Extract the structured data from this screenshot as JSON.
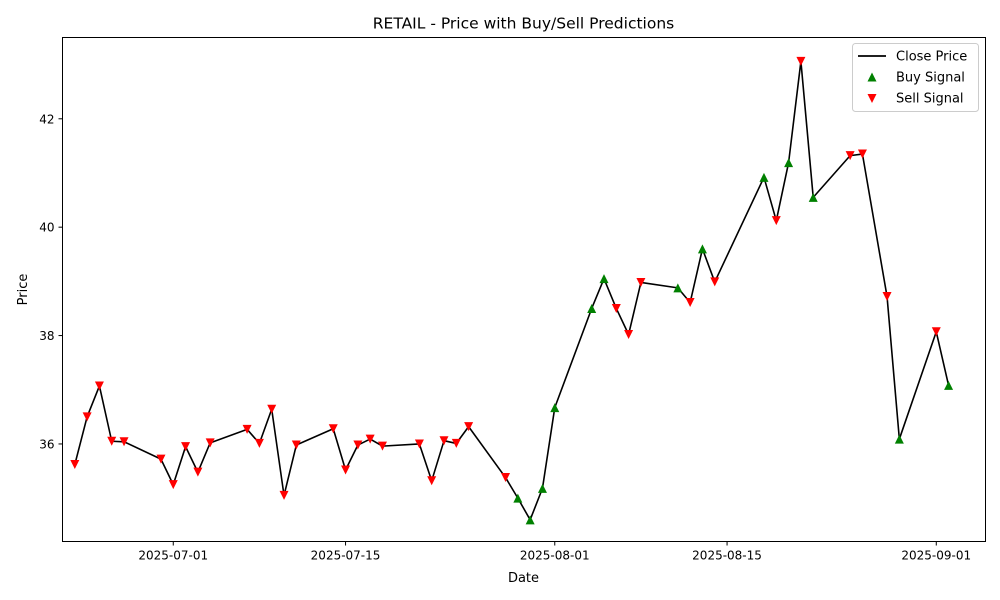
{
  "chart_data": {
    "type": "line",
    "title": "RETAIL - Price with Buy/Sell Predictions",
    "xlabel": "Date",
    "ylabel": "Price",
    "x_range": [
      "2025-06-22",
      "2025-09-05"
    ],
    "y_range": [
      34.2,
      43.5
    ],
    "x_ticks": [
      {
        "date": "2025-07-01",
        "label": "2025-07-01"
      },
      {
        "date": "2025-07-15",
        "label": "2025-07-15"
      },
      {
        "date": "2025-08-01",
        "label": "2025-08-01"
      },
      {
        "date": "2025-08-15",
        "label": "2025-08-15"
      },
      {
        "date": "2025-09-01",
        "label": "2025-09-01"
      }
    ],
    "y_ticks": [
      {
        "value": 36,
        "label": "36"
      },
      {
        "value": 38,
        "label": "38"
      },
      {
        "value": 40,
        "label": "40"
      },
      {
        "value": 42,
        "label": "42"
      }
    ],
    "grid": false,
    "legend_position": "top-right",
    "legend": [
      {
        "key": "close",
        "label": "Close Price",
        "marker": "line",
        "color": "#000000"
      },
      {
        "key": "buy",
        "label": "Buy Signal",
        "marker": "triangle-up",
        "color": "#008000"
      },
      {
        "key": "sell",
        "label": "Sell Signal",
        "marker": "triangle-down",
        "color": "#ff0000"
      }
    ],
    "points": [
      {
        "date": "2025-06-23",
        "close": 35.62,
        "signal": "sell"
      },
      {
        "date": "2025-06-24",
        "close": 36.5,
        "signal": "sell"
      },
      {
        "date": "2025-06-25",
        "close": 37.07,
        "signal": "sell"
      },
      {
        "date": "2025-06-26",
        "close": 36.05,
        "signal": "sell"
      },
      {
        "date": "2025-06-27",
        "close": 36.04,
        "signal": "sell"
      },
      {
        "date": "2025-06-30",
        "close": 35.72,
        "signal": "sell"
      },
      {
        "date": "2025-07-01",
        "close": 35.25,
        "signal": "sell"
      },
      {
        "date": "2025-07-02",
        "close": 35.95,
        "signal": "sell"
      },
      {
        "date": "2025-07-03",
        "close": 35.48,
        "signal": "sell"
      },
      {
        "date": "2025-07-04",
        "close": 36.02,
        "signal": "sell"
      },
      {
        "date": "2025-07-07",
        "close": 36.27,
        "signal": "sell"
      },
      {
        "date": "2025-07-08",
        "close": 36.01,
        "signal": "sell"
      },
      {
        "date": "2025-07-09",
        "close": 36.64,
        "signal": "sell"
      },
      {
        "date": "2025-07-10",
        "close": 35.05,
        "signal": "sell"
      },
      {
        "date": "2025-07-11",
        "close": 35.98,
        "signal": "sell"
      },
      {
        "date": "2025-07-14",
        "close": 36.28,
        "signal": "sell"
      },
      {
        "date": "2025-07-15",
        "close": 35.52,
        "signal": "sell"
      },
      {
        "date": "2025-07-16",
        "close": 35.98,
        "signal": "sell"
      },
      {
        "date": "2025-07-17",
        "close": 36.09,
        "signal": "sell"
      },
      {
        "date": "2025-07-18",
        "close": 35.96,
        "signal": "sell"
      },
      {
        "date": "2025-07-21",
        "close": 36.0,
        "signal": "sell"
      },
      {
        "date": "2025-07-22",
        "close": 35.32,
        "signal": "sell"
      },
      {
        "date": "2025-07-23",
        "close": 36.06,
        "signal": "sell"
      },
      {
        "date": "2025-07-24",
        "close": 36.01,
        "signal": "sell"
      },
      {
        "date": "2025-07-25",
        "close": 36.32,
        "signal": "sell"
      },
      {
        "date": "2025-07-28",
        "close": 35.38,
        "signal": "sell"
      },
      {
        "date": "2025-07-29",
        "close": 35.0,
        "signal": "buy"
      },
      {
        "date": "2025-07-30",
        "close": 34.6,
        "signal": "buy"
      },
      {
        "date": "2025-07-31",
        "close": 35.18,
        "signal": "buy"
      },
      {
        "date": "2025-08-01",
        "close": 36.67,
        "signal": "buy"
      },
      {
        "date": "2025-08-04",
        "close": 38.5,
        "signal": "buy"
      },
      {
        "date": "2025-08-05",
        "close": 39.05,
        "signal": "buy"
      },
      {
        "date": "2025-08-06",
        "close": 38.5,
        "signal": "sell"
      },
      {
        "date": "2025-08-07",
        "close": 38.02,
        "signal": "sell"
      },
      {
        "date": "2025-08-08",
        "close": 38.98,
        "signal": "sell"
      },
      {
        "date": "2025-08-11",
        "close": 38.88,
        "signal": "buy"
      },
      {
        "date": "2025-08-12",
        "close": 38.61,
        "signal": "sell"
      },
      {
        "date": "2025-08-13",
        "close": 39.6,
        "signal": "buy"
      },
      {
        "date": "2025-08-14",
        "close": 38.99,
        "signal": "sell"
      },
      {
        "date": "2025-08-18",
        "close": 40.92,
        "signal": "buy"
      },
      {
        "date": "2025-08-19",
        "close": 40.12,
        "signal": "sell"
      },
      {
        "date": "2025-08-20",
        "close": 41.19,
        "signal": "buy"
      },
      {
        "date": "2025-08-21",
        "close": 43.06,
        "signal": "sell"
      },
      {
        "date": "2025-08-22",
        "close": 40.55,
        "signal": "buy"
      },
      {
        "date": "2025-08-25",
        "close": 41.32,
        "signal": "sell"
      },
      {
        "date": "2025-08-26",
        "close": 41.35,
        "signal": "sell"
      },
      {
        "date": "2025-08-28",
        "close": 38.72,
        "signal": "sell"
      },
      {
        "date": "2025-08-29",
        "close": 36.09,
        "signal": "buy"
      },
      {
        "date": "2025-09-01",
        "close": 38.07,
        "signal": "sell"
      },
      {
        "date": "2025-09-02",
        "close": 37.08,
        "signal": "buy"
      }
    ]
  }
}
